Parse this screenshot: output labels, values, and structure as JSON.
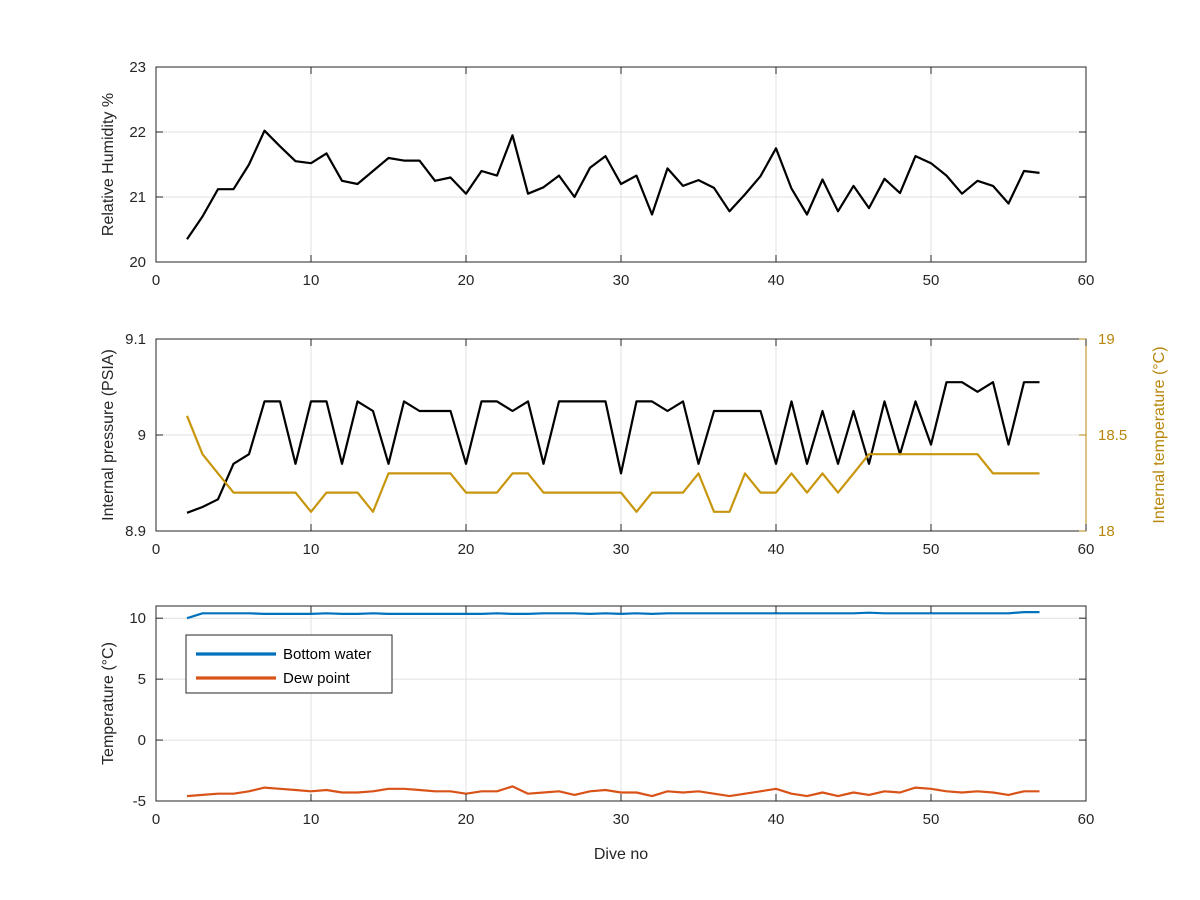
{
  "chart_data": [
    {
      "type": "line",
      "xlabel": "",
      "ylabel": "Relative Humidity %",
      "xlim": [
        0,
        60
      ],
      "ylim": [
        20,
        23
      ],
      "xticks": [
        "0",
        "10",
        "20",
        "30",
        "40",
        "50",
        "60"
      ],
      "yticks": [
        "20",
        "21",
        "22",
        "23"
      ],
      "grid": true,
      "series": [
        {
          "color": "#000000",
          "x": [
            2,
            3,
            4,
            5,
            6,
            7,
            8,
            9,
            10,
            11,
            12,
            13,
            14,
            15,
            16,
            17,
            18,
            19,
            20,
            21,
            22,
            23,
            24,
            25,
            26,
            27,
            28,
            29,
            30,
            31,
            32,
            33,
            34,
            35,
            36,
            37,
            38,
            39,
            40,
            41,
            42,
            43,
            44,
            45,
            46,
            47,
            48,
            49,
            50,
            51,
            52,
            53,
            54,
            55,
            56,
            57
          ],
          "y": [
            20.35,
            20.7,
            21.12,
            21.12,
            21.5,
            22.02,
            21.78,
            21.55,
            21.52,
            21.67,
            21.25,
            21.2,
            21.4,
            21.6,
            21.56,
            21.56,
            21.25,
            21.3,
            21.05,
            21.4,
            21.33,
            21.95,
            21.05,
            21.15,
            21.33,
            21.0,
            21.45,
            21.63,
            21.2,
            21.33,
            20.73,
            21.44,
            21.17,
            21.26,
            21.14,
            20.78,
            21.04,
            21.32,
            21.75,
            21.13,
            20.73,
            21.27,
            20.78,
            21.17,
            20.83,
            21.28,
            21.06,
            21.63,
            21.52,
            21.33,
            21.05,
            21.25,
            21.17,
            20.9,
            21.4,
            21.37
          ]
        }
      ]
    },
    {
      "type": "line",
      "xlabel": "",
      "ylabel": "Internal pressure (PSIA)",
      "ylabel_right": "Internal temperature (°C)",
      "xlim": [
        0,
        60
      ],
      "ylim": [
        8.9,
        9.1
      ],
      "ylim_right": [
        18,
        19
      ],
      "xticks": [
        "0",
        "10",
        "20",
        "30",
        "40",
        "50",
        "60"
      ],
      "yticks": [
        "8.9",
        "9",
        "9.1"
      ],
      "yticks_right": [
        "18",
        "18.5",
        "19"
      ],
      "grid": true,
      "series": [
        {
          "axis": "left",
          "color": "#000000",
          "x": [
            2,
            3,
            4,
            5,
            6,
            7,
            8,
            9,
            10,
            11,
            12,
            13,
            14,
            15,
            16,
            17,
            18,
            19,
            20,
            21,
            22,
            23,
            24,
            25,
            26,
            27,
            28,
            29,
            30,
            31,
            32,
            33,
            34,
            35,
            36,
            37,
            38,
            39,
            40,
            41,
            42,
            43,
            44,
            45,
            46,
            47,
            48,
            49,
            50,
            51,
            52,
            53,
            54,
            55,
            56,
            57
          ],
          "y": [
            8.919,
            8.925,
            8.933,
            8.97,
            8.98,
            9.035,
            9.035,
            8.97,
            9.035,
            9.035,
            8.97,
            9.035,
            9.025,
            8.97,
            9.035,
            9.025,
            9.025,
            9.025,
            8.97,
            9.035,
            9.035,
            9.025,
            9.035,
            8.97,
            9.035,
            9.035,
            9.035,
            9.035,
            8.96,
            9.035,
            9.035,
            9.025,
            9.035,
            8.97,
            9.025,
            9.025,
            9.025,
            9.025,
            8.97,
            9.035,
            8.97,
            9.025,
            8.97,
            9.025,
            8.97,
            9.035,
            8.98,
            9.035,
            8.99,
            9.055,
            9.055,
            9.045,
            9.055,
            8.99,
            9.055,
            9.055
          ]
        },
        {
          "axis": "right",
          "color": "#c8960c",
          "x": [
            2,
            3,
            4,
            5,
            6,
            7,
            8,
            9,
            10,
            11,
            12,
            13,
            14,
            15,
            16,
            17,
            18,
            19,
            20,
            21,
            22,
            23,
            24,
            25,
            26,
            27,
            28,
            29,
            30,
            31,
            32,
            33,
            34,
            35,
            36,
            37,
            38,
            39,
            40,
            41,
            42,
            43,
            44,
            45,
            46,
            47,
            48,
            49,
            50,
            51,
            52,
            53,
            54,
            55,
            56,
            57
          ],
          "y": [
            18.6,
            18.4,
            18.3,
            18.2,
            18.2,
            18.2,
            18.2,
            18.2,
            18.1,
            18.2,
            18.2,
            18.2,
            18.1,
            18.3,
            18.3,
            18.3,
            18.3,
            18.3,
            18.2,
            18.2,
            18.2,
            18.3,
            18.3,
            18.2,
            18.2,
            18.2,
            18.2,
            18.2,
            18.2,
            18.1,
            18.2,
            18.2,
            18.2,
            18.3,
            18.1,
            18.1,
            18.3,
            18.2,
            18.2,
            18.3,
            18.2,
            18.3,
            18.2,
            18.3,
            18.4,
            18.4,
            18.4,
            18.4,
            18.4,
            18.4,
            18.4,
            18.4,
            18.3,
            18.3,
            18.3,
            18.3
          ]
        }
      ]
    },
    {
      "type": "line",
      "xlabel": "Dive no",
      "ylabel": "Temperature (°C)",
      "xlim": [
        0,
        60
      ],
      "ylim": [
        -5,
        11
      ],
      "xticks": [
        "0",
        "10",
        "20",
        "30",
        "40",
        "50",
        "60"
      ],
      "yticks": [
        "-5",
        "0",
        "5",
        "10"
      ],
      "grid": true,
      "legend": "top-left",
      "series": [
        {
          "name": "Bottom water",
          "color": "#0072bd",
          "x": [
            2,
            3,
            4,
            5,
            6,
            7,
            8,
            9,
            10,
            11,
            12,
            13,
            14,
            15,
            16,
            17,
            18,
            19,
            20,
            21,
            22,
            23,
            24,
            25,
            26,
            27,
            28,
            29,
            30,
            31,
            32,
            33,
            34,
            35,
            36,
            37,
            38,
            39,
            40,
            41,
            42,
            43,
            44,
            45,
            46,
            47,
            48,
            49,
            50,
            51,
            52,
            53,
            54,
            55,
            56,
            57
          ],
          "y": [
            10.0,
            10.4,
            10.4,
            10.4,
            10.4,
            10.35,
            10.35,
            10.35,
            10.35,
            10.4,
            10.35,
            10.35,
            10.4,
            10.35,
            10.35,
            10.35,
            10.35,
            10.35,
            10.35,
            10.35,
            10.4,
            10.35,
            10.35,
            10.4,
            10.4,
            10.4,
            10.35,
            10.4,
            10.35,
            10.4,
            10.35,
            10.4,
            10.4,
            10.4,
            10.4,
            10.4,
            10.4,
            10.4,
            10.4,
            10.4,
            10.4,
            10.4,
            10.4,
            10.4,
            10.45,
            10.4,
            10.4,
            10.4,
            10.4,
            10.4,
            10.4,
            10.4,
            10.4,
            10.4,
            10.5,
            10.5
          ]
        },
        {
          "name": "Dew point",
          "color": "#d95319",
          "x": [
            2,
            3,
            4,
            5,
            6,
            7,
            8,
            9,
            10,
            11,
            12,
            13,
            14,
            15,
            16,
            17,
            18,
            19,
            20,
            21,
            22,
            23,
            24,
            25,
            26,
            27,
            28,
            29,
            30,
            31,
            32,
            33,
            34,
            35,
            36,
            37,
            38,
            39,
            40,
            41,
            42,
            43,
            44,
            45,
            46,
            47,
            48,
            49,
            50,
            51,
            52,
            53,
            54,
            55,
            56,
            57
          ],
          "y": [
            -4.6,
            -4.5,
            -4.4,
            -4.4,
            -4.2,
            -3.9,
            -4.0,
            -4.1,
            -4.2,
            -4.1,
            -4.3,
            -4.3,
            -4.2,
            -4.0,
            -4.0,
            -4.1,
            -4.2,
            -4.2,
            -4.4,
            -4.2,
            -4.2,
            -3.8,
            -4.4,
            -4.3,
            -4.2,
            -4.5,
            -4.2,
            -4.1,
            -4.3,
            -4.3,
            -4.6,
            -4.2,
            -4.3,
            -4.2,
            -4.4,
            -4.6,
            -4.4,
            -4.2,
            -4.0,
            -4.4,
            -4.6,
            -4.3,
            -4.6,
            -4.3,
            -4.5,
            -4.2,
            -4.3,
            -3.9,
            -4.0,
            -4.2,
            -4.3,
            -4.2,
            -4.3,
            -4.5,
            -4.2,
            -4.2
          ]
        }
      ]
    }
  ]
}
